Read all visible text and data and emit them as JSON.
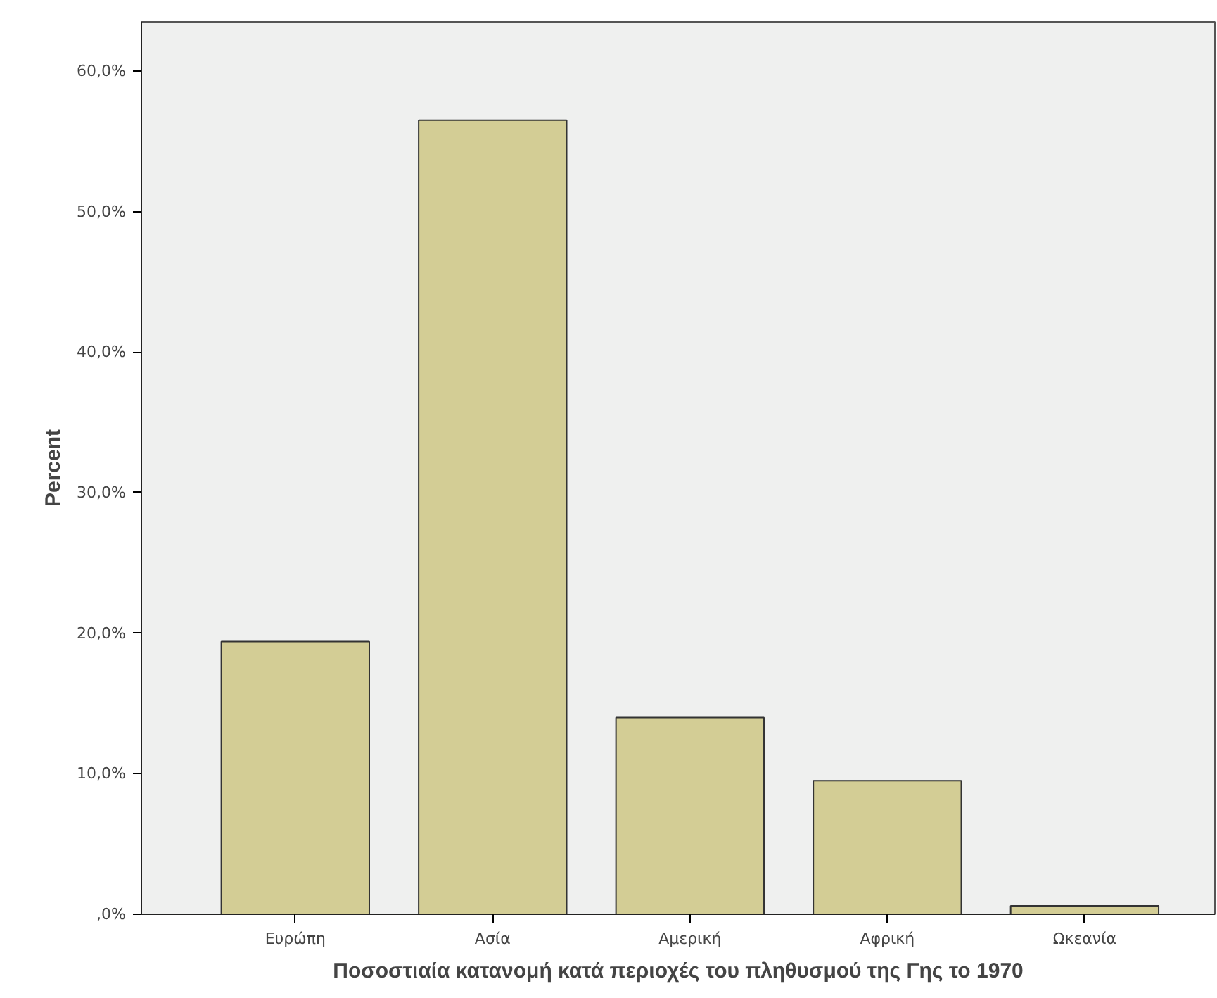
{
  "chart_data": {
    "type": "bar",
    "xlabel": "Ποσοστιαία κατανομή κατά περιοχές του πληθυσμού της Γης το 1970",
    "ylabel": "Percent",
    "categories": [
      "Ευρώπη",
      "Ασία",
      "Αμερική",
      "Αφρική",
      "Ωκεανία"
    ],
    "values": [
      19.4,
      56.5,
      14.0,
      9.5,
      0.6
    ],
    "color": "#d3cd95",
    "ylim": [
      0,
      63.5
    ],
    "yticks": [
      {
        "value": 0,
        "label": ",0%"
      },
      {
        "value": 10,
        "label": "10,0%"
      },
      {
        "value": 20,
        "label": "20,0%"
      },
      {
        "value": 30,
        "label": "30,0%"
      },
      {
        "value": 40,
        "label": "40,0%"
      },
      {
        "value": 50,
        "label": "50,0%"
      },
      {
        "value": 60,
        "label": "60,0%"
      }
    ],
    "grid": false
  }
}
